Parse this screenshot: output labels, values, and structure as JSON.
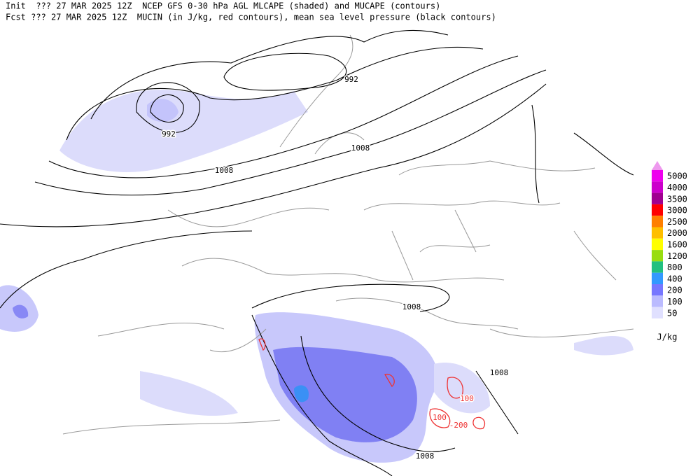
{
  "header": {
    "line1": "Init  ??? 27 MAR 2025 12Z  NCEP GFS 0-30 hPa AGL MLCAPE (shaded) and MUCAPE (contours)",
    "line2": "Fcst ??? 27 MAR 2025 12Z  MUCIN (in J/kg, red contours), mean sea level pressure (black contours)"
  },
  "isobar_labels": [
    "992",
    "992",
    "1008",
    "1008",
    "1008",
    "1008",
    "1008"
  ],
  "cin_labels": [
    "100",
    "100",
    "-200"
  ],
  "legend": {
    "unit": "J/kg",
    "entries": [
      {
        "value": 5000,
        "color": "#ee00ee"
      },
      {
        "value": 4000,
        "color": "#cc00cc"
      },
      {
        "value": 3500,
        "color": "#a00090"
      },
      {
        "value": 3000,
        "color": "#ff0000"
      },
      {
        "value": 2500,
        "color": "#ff7f00"
      },
      {
        "value": 2000,
        "color": "#ffbf00"
      },
      {
        "value": 1600,
        "color": "#ffff00"
      },
      {
        "value": 1200,
        "color": "#99dd11"
      },
      {
        "value": 800,
        "color": "#22c080"
      },
      {
        "value": 400,
        "color": "#3399ff"
      },
      {
        "value": 200,
        "color": "#7777ff"
      },
      {
        "value": 100,
        "color": "#bbbbff"
      },
      {
        "value": 50,
        "color": "#e0e0ff"
      }
    ]
  }
}
